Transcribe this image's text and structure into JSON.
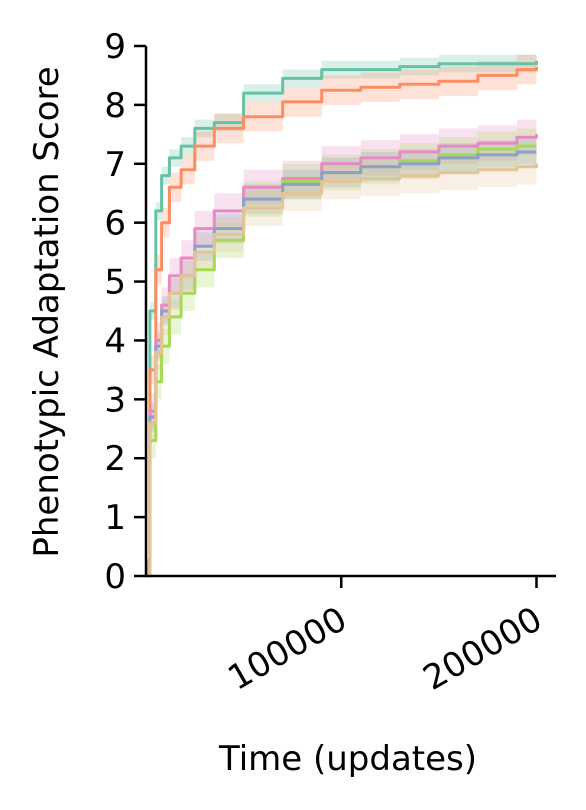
{
  "chart_data": {
    "type": "line",
    "title": "",
    "xlabel": "Time (updates)",
    "ylabel": "Phenotypic Adaptation Score",
    "xlim": [
      0,
      210000
    ],
    "ylim": [
      0,
      9
    ],
    "xticks": [
      100000,
      200000
    ],
    "xtick_labels": [
      "100000",
      "200000"
    ],
    "yticks": [
      0,
      1,
      2,
      3,
      4,
      5,
      6,
      7,
      8,
      9
    ],
    "ytick_labels": [
      "0",
      "1",
      "2",
      "3",
      "4",
      "5",
      "6",
      "7",
      "8",
      "9"
    ],
    "grid": false,
    "legend": "none",
    "series": [
      {
        "color": "#66c2a5",
        "x": [
          0,
          2000,
          5000,
          8000,
          12000,
          18000,
          25000,
          35000,
          50000,
          70000,
          90000,
          110000,
          130000,
          150000,
          170000,
          190000,
          200000
        ],
        "y": [
          0,
          4.5,
          6.2,
          6.8,
          7.1,
          7.3,
          7.6,
          7.7,
          8.2,
          8.45,
          8.6,
          8.6,
          8.65,
          8.7,
          8.7,
          8.7,
          8.75
        ],
        "band": 0.15
      },
      {
        "color": "#fc8d62",
        "x": [
          0,
          2000,
          5000,
          8000,
          12000,
          18000,
          25000,
          35000,
          50000,
          70000,
          90000,
          110000,
          130000,
          150000,
          170000,
          190000,
          200000
        ],
        "y": [
          0,
          3.5,
          5.2,
          6.0,
          6.6,
          6.9,
          7.3,
          7.6,
          7.8,
          8.05,
          8.25,
          8.3,
          8.35,
          8.4,
          8.5,
          8.6,
          8.65
        ],
        "band": 0.25
      },
      {
        "color": "#e78ac3",
        "x": [
          0,
          2000,
          5000,
          8000,
          12000,
          18000,
          25000,
          35000,
          50000,
          70000,
          90000,
          110000,
          130000,
          150000,
          170000,
          190000,
          200000
        ],
        "y": [
          0,
          2.8,
          4.0,
          4.6,
          5.1,
          5.4,
          5.9,
          6.2,
          6.6,
          6.75,
          7.0,
          7.1,
          7.2,
          7.3,
          7.35,
          7.45,
          7.5
        ],
        "band": 0.3
      },
      {
        "color": "#a6d854",
        "x": [
          0,
          2000,
          5000,
          8000,
          12000,
          18000,
          25000,
          35000,
          50000,
          70000,
          90000,
          110000,
          130000,
          150000,
          170000,
          190000,
          200000
        ],
        "y": [
          0,
          2.3,
          3.3,
          3.9,
          4.4,
          4.8,
          5.2,
          5.7,
          6.4,
          6.7,
          6.85,
          6.95,
          7.05,
          7.15,
          7.25,
          7.3,
          7.3
        ],
        "band": 0.3
      },
      {
        "color": "#8da0cb",
        "x": [
          0,
          2000,
          5000,
          8000,
          12000,
          18000,
          25000,
          35000,
          50000,
          70000,
          90000,
          110000,
          130000,
          150000,
          170000,
          190000,
          200000
        ],
        "y": [
          0,
          2.7,
          3.9,
          4.5,
          4.8,
          5.1,
          5.6,
          5.9,
          6.4,
          6.65,
          6.85,
          6.95,
          7.0,
          7.1,
          7.15,
          7.2,
          7.2
        ],
        "band": 0.25
      },
      {
        "color": "#e5c494",
        "x": [
          0,
          2000,
          5000,
          8000,
          12000,
          18000,
          25000,
          35000,
          50000,
          70000,
          90000,
          110000,
          130000,
          150000,
          170000,
          190000,
          200000
        ],
        "y": [
          0,
          2.6,
          3.8,
          4.4,
          4.8,
          5.1,
          5.5,
          5.8,
          6.25,
          6.5,
          6.7,
          6.75,
          6.8,
          6.85,
          6.9,
          6.95,
          7.0
        ],
        "band": 0.3
      }
    ]
  }
}
